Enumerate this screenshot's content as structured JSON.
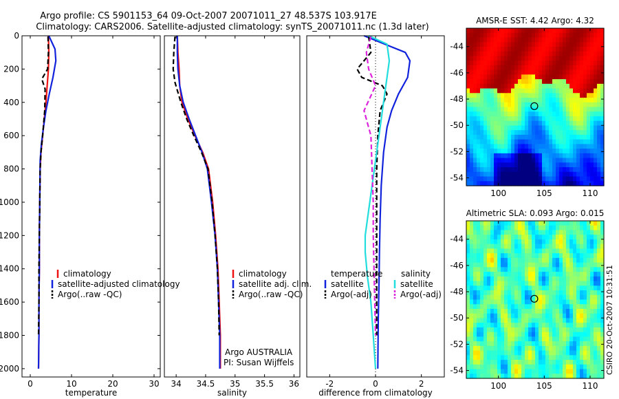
{
  "header": {
    "line1": "Argo profile: CS 5901153_64 09-Oct-2007 20071011_27 48.537S 103.917E",
    "line2": "Climatology: CARS2006. Satellite-adjusted climatology: synTS_20071011.nc (1.3d later)"
  },
  "footer_stamp": "CSIRO 20-Oct-2007 10:31:51",
  "colors": {
    "climatology": "#ee1111",
    "satellite": "#1122dd",
    "argo": "#000000",
    "salinity_satellite": "#22dddd",
    "salinity_argo": "#dd22dd",
    "zero_line": "#000000"
  },
  "chart_data": [
    {
      "type": "line",
      "panel": "temperature",
      "xlabel": "temperature",
      "ylabel": "",
      "xlim": [
        -2,
        31.5
      ],
      "ylim": [
        2050,
        0
      ],
      "xticks": [
        0,
        10,
        20,
        30
      ],
      "yticks": [
        0,
        200,
        400,
        600,
        800,
        1000,
        1200,
        1400,
        1600,
        1800,
        2000
      ],
      "legend": [
        "climatology",
        "satellite-adjusted climatology",
        "Argo(..raw -QC)"
      ],
      "legend_position": "lower-middle",
      "series": [
        {
          "name": "climatology",
          "color_key": "climatology",
          "style": "solid",
          "x": [
            4.4,
            4.5,
            4.4,
            4.1,
            3.8,
            3.4,
            3.0,
            2.6,
            2.4,
            2.3,
            2.2,
            2.2,
            2.1,
            2.1,
            2.0
          ],
          "y": [
            0,
            100,
            200,
            300,
            400,
            500,
            600,
            700,
            800,
            1000,
            1200,
            1400,
            1600,
            1800,
            2000
          ]
        },
        {
          "name": "satellite-adjusted climatology",
          "color_key": "satellite",
          "style": "solid",
          "x": [
            4.5,
            6.0,
            6.2,
            5.5,
            4.6,
            3.8,
            3.2,
            2.7,
            2.4,
            2.3,
            2.2,
            2.2,
            2.1,
            2.1,
            2.0
          ],
          "y": [
            0,
            80,
            150,
            250,
            350,
            450,
            550,
            650,
            750,
            1000,
            1200,
            1400,
            1600,
            1800,
            2000
          ]
        },
        {
          "name": "Argo(..raw -QC)",
          "color_key": "argo",
          "style": "dashed",
          "x": [
            4.3,
            4.4,
            4.2,
            2.8,
            3.6,
            3.5,
            3.0,
            2.6,
            2.4,
            2.3,
            2.2,
            2.1,
            2.1,
            2.0
          ],
          "y": [
            5,
            100,
            200,
            260,
            320,
            450,
            600,
            700,
            800,
            1000,
            1200,
            1400,
            1600,
            1800
          ]
        }
      ]
    },
    {
      "type": "line",
      "panel": "salinity",
      "xlabel": "salinity",
      "ylabel": "",
      "xlim": [
        33.8,
        36.1
      ],
      "ylim": [
        2050,
        0
      ],
      "xticks": [
        34,
        34.5,
        35,
        35.5,
        36
      ],
      "xtick_labels": [
        "34",
        "34.5",
        "35",
        "35.5",
        "36"
      ],
      "legend": [
        "climatology",
        "satellite adj. clim.",
        "Argo(..raw -QC)"
      ],
      "legend_position": "lower-right",
      "annotations": [
        "Argo AUSTRALIA",
        "PI: Susan Wijffels"
      ],
      "series": [
        {
          "name": "climatology",
          "color_key": "climatology",
          "style": "solid",
          "x": [
            34.02,
            34.03,
            34.05,
            34.06,
            34.1,
            34.2,
            34.32,
            34.45,
            34.55,
            34.62,
            34.67,
            34.71,
            34.73,
            34.75,
            34.75
          ],
          "y": [
            0,
            100,
            200,
            300,
            400,
            500,
            600,
            700,
            800,
            1000,
            1200,
            1400,
            1600,
            1800,
            2000
          ]
        },
        {
          "name": "satellite adj. clim.",
          "color_key": "satellite",
          "style": "solid",
          "x": [
            34.02,
            34.02,
            34.03,
            34.06,
            34.12,
            34.22,
            34.33,
            34.44,
            34.53,
            34.6,
            34.66,
            34.7,
            34.72,
            34.74,
            34.74
          ],
          "y": [
            0,
            100,
            200,
            300,
            400,
            500,
            600,
            700,
            800,
            1000,
            1200,
            1400,
            1600,
            1800,
            2000
          ]
        },
        {
          "name": "Argo(..raw -QC)",
          "color_key": "argo",
          "style": "dashed",
          "x": [
            33.98,
            33.96,
            33.95,
            33.98,
            34.08,
            34.18,
            34.3,
            34.43,
            34.54,
            34.61,
            34.66,
            34.7,
            34.72,
            34.73
          ],
          "y": [
            5,
            100,
            200,
            280,
            400,
            500,
            600,
            700,
            800,
            1000,
            1200,
            1400,
            1600,
            1800
          ]
        }
      ]
    },
    {
      "type": "line",
      "panel": "difference",
      "xlabel": "difference from climatology",
      "ylabel": "",
      "xlim": [
        -3,
        3
      ],
      "ylim": [
        2050,
        0
      ],
      "xticks": [
        -2,
        0,
        2
      ],
      "legend_titles": [
        "temperature",
        "salinity"
      ],
      "legend": [
        "satellite",
        "Argo(-adj)",
        "satellite",
        "Argo(-adj)"
      ],
      "legend_position": "lower-middle",
      "series": [
        {
          "name": "satellite",
          "group": "temperature",
          "color_key": "satellite",
          "style": "solid",
          "x": [
            -0.5,
            0.4,
            1.3,
            1.5,
            1.4,
            1.0,
            0.7,
            0.5,
            0.35,
            0.25,
            0.2,
            0.17,
            0.15,
            0.12,
            0.1
          ],
          "y": [
            0,
            50,
            100,
            150,
            250,
            350,
            450,
            550,
            700,
            900,
            1100,
            1300,
            1500,
            1700,
            2000
          ]
        },
        {
          "name": "Argo(-adj)",
          "group": "temperature",
          "color_key": "argo",
          "style": "dashed",
          "x": [
            -0.3,
            -0.2,
            -0.8,
            -0.6,
            0.3,
            0.5,
            0.2,
            0.1,
            0.05,
            0.05,
            0.05,
            0.05,
            0.05
          ],
          "y": [
            5,
            100,
            200,
            250,
            300,
            350,
            450,
            600,
            800,
            1000,
            1200,
            1400,
            1800
          ]
        },
        {
          "name": "satellite",
          "group": "salinity",
          "color_key": "salinity_satellite",
          "style": "solid",
          "x": [
            -0.3,
            0.5,
            0.6,
            0.5,
            0.4,
            0.3,
            0.15,
            0.0,
            -0.15,
            -0.35,
            -0.45,
            -0.45,
            -0.35,
            -0.2,
            -0.1,
            0.0
          ],
          "y": [
            0,
            50,
            150,
            250,
            350,
            450,
            600,
            750,
            900,
            1100,
            1200,
            1300,
            1450,
            1600,
            1800,
            2000
          ]
        },
        {
          "name": "Argo(-adj)",
          "group": "salinity",
          "color_key": "salinity_argo",
          "style": "dashed",
          "x": [
            -0.2,
            -0.4,
            -0.3,
            0.0,
            -0.5,
            -0.2,
            -0.15,
            -0.1,
            -0.1,
            -0.05,
            0.0
          ],
          "y": [
            5,
            100,
            200,
            300,
            450,
            600,
            800,
            1000,
            1200,
            1500,
            1800
          ]
        }
      ]
    },
    {
      "type": "heatmap",
      "panel": "sst-map",
      "title": "AMSR-E SST: 4.42 Argo: 4.32",
      "xlim": [
        96.5,
        111.5
      ],
      "ylim": [
        -54.6,
        -42.6
      ],
      "xticks": [
        100,
        105,
        110
      ],
      "yticks": [
        -44,
        -46,
        -48,
        -50,
        -52,
        -54
      ],
      "marker": {
        "lon": 103.917,
        "lat": -48.537
      },
      "colormap": "jet"
    },
    {
      "type": "heatmap",
      "panel": "sla-map",
      "title": "Altimetric SLA: 0.093 Argo: 0.015",
      "xlim": [
        96.5,
        111.5
      ],
      "ylim": [
        -54.6,
        -42.6
      ],
      "xticks": [
        100,
        105,
        110
      ],
      "yticks": [
        -44,
        -46,
        -48,
        -50,
        -52,
        -54
      ],
      "marker": {
        "lon": 103.917,
        "lat": -48.537
      },
      "colormap": "jet"
    }
  ]
}
